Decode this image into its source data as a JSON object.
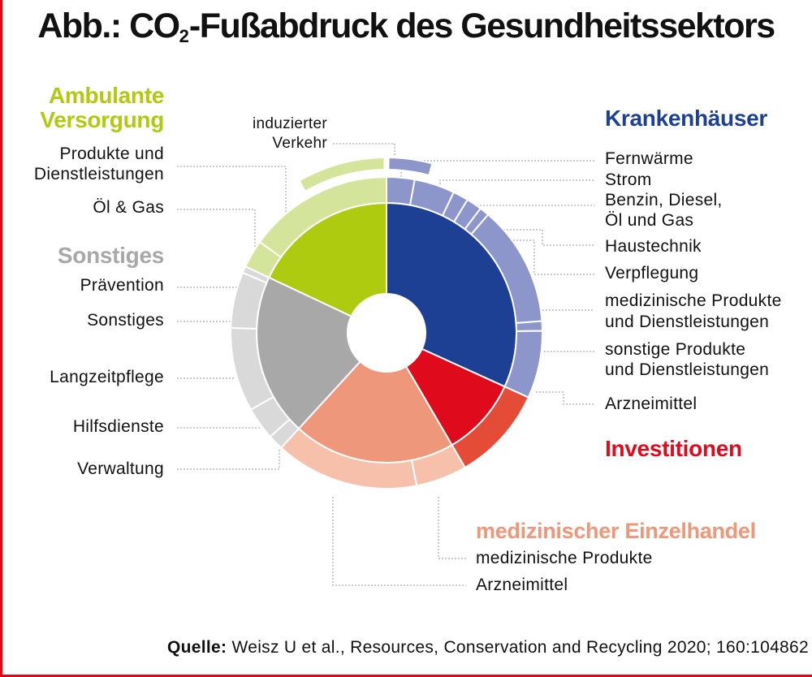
{
  "title": {
    "prefix": "Abb.: CO",
    "subscript": "2",
    "suffix": "-Fußabdruck des Gesundheitssektors"
  },
  "colors": {
    "frame": "#e30613",
    "ambulant_inner": "#aecb10",
    "ambulant_outer": "#d4e49a",
    "sonstiges_inner": "#a8a8a8",
    "sonstiges_outer": "#d9d9d9",
    "krankenhaus_inner": "#1d3f94",
    "krankenhaus_outer": "#8c96cb",
    "investitionen_inner": "#df0a1b",
    "investitionen_outer": "#e44c37",
    "einzelhandel_inner": "#ef977a",
    "einzelhandel_outer": "#f6c0ab",
    "leader_line": "#9a9a9a"
  },
  "labels": {
    "ambulant_header_1": "Ambulante",
    "ambulant_header_2": "Versorgung",
    "ambulant_produkte_1": "Produkte und",
    "ambulant_produkte_2": "Dienstleistungen",
    "ambulant_oel_gas": "Öl & Gas",
    "sonstiges_header": "Sonstiges",
    "praevention": "Prävention",
    "sonstiges": "Sonstiges",
    "langzeitpflege": "Langzeitpflege",
    "hilfsdienste": "Hilfsdienste",
    "verwaltung": "Verwaltung",
    "induzierter_1": "induzierter",
    "induzierter_2": "Verkehr",
    "krankenhaus_header": "Krankenhäuser",
    "fernwaerme": "Fernwärme",
    "strom": "Strom",
    "benzin_1": "Benzin, Diesel,",
    "benzin_2": "Öl und Gas",
    "haustechnik": "Haustechnik",
    "verpflegung": "Verpflegung",
    "med_produkte_1": "medizinische Produkte",
    "med_produkte_2": "und Dienstleistungen",
    "sonstige_produkte_1": "sonstige Produkte",
    "sonstige_produkte_2": "und Dienstleistungen",
    "arzneimittel_kh": "Arzneimittel",
    "investitionen_header": "Investitionen",
    "einzelhandel_header": "medizinischer Einzelhandel",
    "einzelhandel_med_produkte": "medizinische Produkte",
    "einzelhandel_arzneimittel": "Arzneimittel"
  },
  "source": {
    "label": "Quelle:",
    "text": "Weisz U et al., Resources, Conservation and Recycling 2020; 160:104862"
  },
  "chart_data": {
    "type": "pie",
    "variant": "sunburst",
    "unit": "percent of total footprint",
    "inner_ring": [
      {
        "name": "Krankenhäuser",
        "value": 31.8,
        "color": "#1d3f94"
      },
      {
        "name": "Investitionen",
        "value": 9.8,
        "color": "#df0a1b"
      },
      {
        "name": "medizinischer Einzelhandel",
        "value": 20.2,
        "color": "#ef977a"
      },
      {
        "name": "Sonstiges",
        "value": 20.2,
        "color": "#a8a8a8"
      },
      {
        "name": "Ambulante Versorgung",
        "value": 18.0,
        "color": "#aecb10"
      }
    ],
    "outer_ring": [
      {
        "parent": "Krankenhäuser",
        "name": "Fernwärme",
        "value": 2.9
      },
      {
        "parent": "Krankenhäuser",
        "name": "Strom",
        "value": 4.2
      },
      {
        "parent": "Krankenhäuser",
        "name": "Benzin, Diesel, Öl und Gas",
        "value": 1.6
      },
      {
        "parent": "Krankenhäuser",
        "name": "Haustechnik",
        "value": 1.6
      },
      {
        "parent": "Krankenhäuser",
        "name": "Verpflegung",
        "value": 1.0
      },
      {
        "parent": "Krankenhäuser",
        "name": "medizinische Produkte und Dienstleistungen",
        "value": 12.5
      },
      {
        "parent": "Krankenhäuser",
        "name": "sonstige Produkte und Dienstleistungen",
        "value": 1.0
      },
      {
        "parent": "Krankenhäuser",
        "name": "Arzneimittel",
        "value": 7.0
      },
      {
        "parent": "Investitionen",
        "name": "Investitionen",
        "value": 9.8
      },
      {
        "parent": "medizinischer Einzelhandel",
        "name": "medizinische Produkte",
        "value": 5.3
      },
      {
        "parent": "medizinischer Einzelhandel",
        "name": "Arzneimittel",
        "value": 14.9
      },
      {
        "parent": "Sonstiges",
        "name": "Verwaltung",
        "value": 1.6
      },
      {
        "parent": "Sonstiges",
        "name": "Hilfsdienste",
        "value": 3.4
      },
      {
        "parent": "Sonstiges",
        "name": "Langzeitpflege",
        "value": 8.7
      },
      {
        "parent": "Sonstiges",
        "name": "Sonstiges",
        "value": 5.8
      },
      {
        "parent": "Sonstiges",
        "name": "Prävention",
        "value": 0.7
      },
      {
        "parent": "Ambulante Versorgung",
        "name": "Öl & Gas",
        "value": 2.9
      },
      {
        "parent": "Ambulante Versorgung",
        "name": "Produkte und Dienstleistungen",
        "value": 15.1
      }
    ],
    "induced_traffic_ring": [
      {
        "parent": "Ambulante Versorgung",
        "name": "induzierter Verkehr",
        "value": 8.3
      },
      {
        "parent": "Krankenhäuser",
        "name": "induzierter Verkehr",
        "value": 4.2
      }
    ]
  }
}
